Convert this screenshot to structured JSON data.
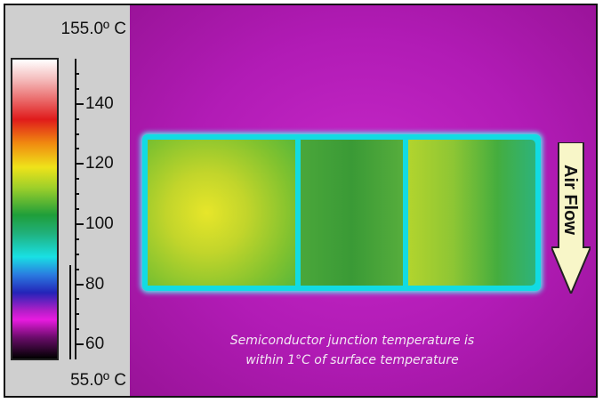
{
  "color_scale": {
    "max_label": "155.0º C",
    "min_label": "55.0º C",
    "ticks": [
      {
        "label": "140",
        "value": 140
      },
      {
        "label": "120",
        "value": 120
      },
      {
        "label": "100",
        "value": 100
      },
      {
        "label": "80",
        "value": 80
      },
      {
        "label": "60",
        "value": 60
      }
    ]
  },
  "arrow": {
    "label": "Air Flow",
    "fill": "#f8f6c8"
  },
  "caption": {
    "line1": "Semiconductor junction temperature is",
    "line2": "within 1°C of surface temperature"
  },
  "colors": {
    "background": "#b11bb5",
    "hotspot": "#e7e62a",
    "component_edge": "#12dbe3"
  }
}
